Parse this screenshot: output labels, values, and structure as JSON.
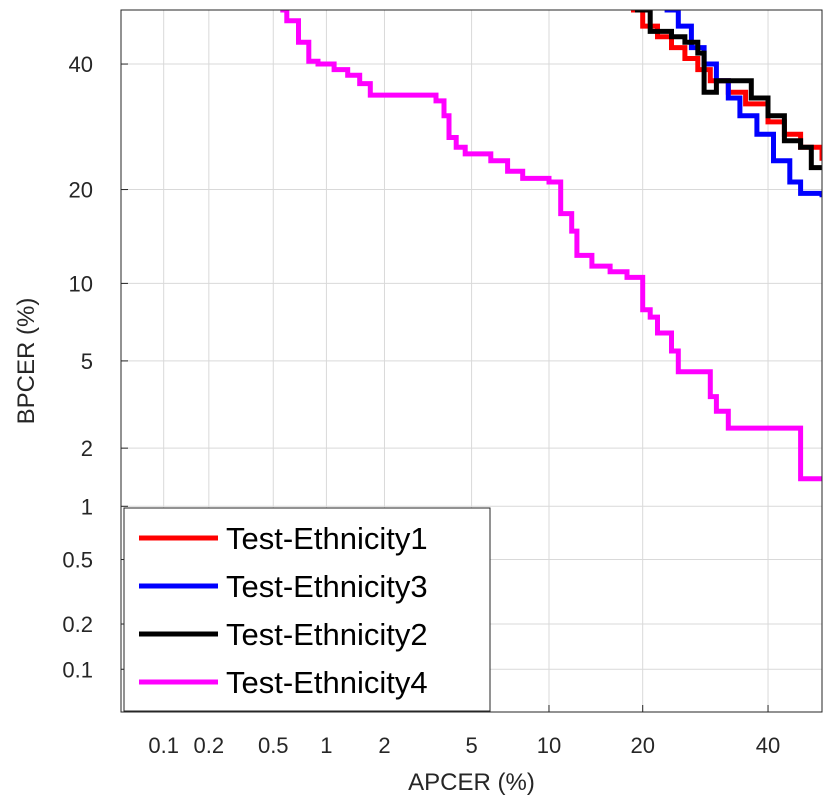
{
  "chart_data": {
    "type": "line",
    "title": "",
    "xlabel": "APCER (%)",
    "ylabel": "BPCER (%)",
    "x_scale": "probit",
    "y_scale": "probit",
    "xlim": [
      0.05,
      50
    ],
    "ylim": [
      0.05,
      50
    ],
    "x_ticks": [
      0.1,
      0.2,
      0.5,
      1,
      2,
      5,
      10,
      20,
      40
    ],
    "x_tick_labels": [
      "0.1",
      "0.2",
      "0.5",
      "1",
      "2",
      "5",
      "10",
      "20",
      "40"
    ],
    "y_ticks": [
      0.1,
      0.2,
      0.5,
      1,
      2,
      5,
      10,
      20,
      40
    ],
    "y_tick_labels": [
      "0.1",
      "0.2",
      "0.5",
      "1",
      "2",
      "5",
      "10",
      "20",
      "40"
    ],
    "grid": true,
    "legend_position": "bottom-left",
    "series": [
      {
        "name": "Test-Ethnicity1",
        "color": "#ff0000",
        "x": [
          18.5,
          20,
          22,
          24,
          26,
          28,
          30,
          33,
          36,
          40,
          43,
          46,
          50
        ],
        "y": [
          50,
          47,
          45,
          43,
          41,
          39,
          37,
          35,
          33,
          30,
          28,
          26,
          24
        ]
      },
      {
        "name": "Test-Ethnicity3",
        "color": "#0000ff",
        "x": [
          23,
          25,
          27,
          29,
          31,
          33,
          35,
          38,
          41,
          44,
          46,
          50
        ],
        "y": [
          50,
          47,
          43,
          40,
          37,
          34,
          31,
          28,
          24,
          21,
          19.5,
          19
        ]
      },
      {
        "name": "Test-Ethnicity2",
        "color": "#000000",
        "x": [
          19,
          21,
          24,
          26,
          28,
          29,
          31,
          35,
          37,
          40,
          43,
          46,
          48,
          50
        ],
        "y": [
          50,
          46,
          45,
          44,
          42,
          35,
          37,
          37,
          34,
          31,
          27,
          26,
          23,
          23
        ]
      },
      {
        "name": "Test-Ethnicity4",
        "color": "#ff00ff",
        "x": [
          0.55,
          0.6,
          0.7,
          0.8,
          0.9,
          1.1,
          1.3,
          1.5,
          1.7,
          2,
          2.5,
          3,
          3.5,
          3.8,
          4,
          4.3,
          4.7,
          5,
          6,
          7,
          8,
          9,
          10,
          11,
          12,
          12.5,
          14,
          16,
          18,
          19.5,
          20,
          21,
          22,
          24,
          25,
          28,
          30,
          31,
          33,
          45,
          46,
          50
        ],
        "y": [
          50,
          48,
          44,
          40.5,
          40,
          39,
          38,
          36.5,
          34.5,
          34.5,
          34.5,
          34.5,
          33.5,
          31,
          27.5,
          26,
          25,
          25,
          24,
          22.5,
          21.5,
          21.5,
          21,
          17,
          15,
          12.5,
          11.5,
          11,
          10.5,
          10.5,
          8,
          7.5,
          6.5,
          5.5,
          4.5,
          4.5,
          3.5,
          3,
          2.5,
          2.5,
          1.4,
          1.4
        ]
      }
    ]
  }
}
